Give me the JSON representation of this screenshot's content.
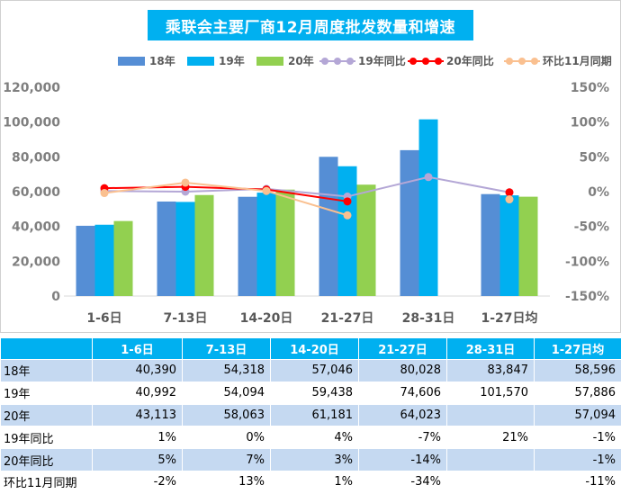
{
  "chart_data": {
    "type": "bar",
    "title": "乘联会主要厂商12月周度批发数量和增速",
    "categories": [
      "1-6日",
      "7-13日",
      "14-20日",
      "21-27日",
      "28-31日",
      "1-27日均"
    ],
    "series": [
      {
        "name": "18年",
        "kind": "bar",
        "axis": "left",
        "color": "#558ed5",
        "values": [
          40390,
          54318,
          57046,
          80028,
          83847,
          58596
        ]
      },
      {
        "name": "19年",
        "kind": "bar",
        "axis": "left",
        "color": "#00b0f0",
        "values": [
          40992,
          54094,
          59438,
          74606,
          101570,
          57886
        ]
      },
      {
        "name": "20年",
        "kind": "bar",
        "axis": "left",
        "color": "#92d050",
        "values": [
          43113,
          58063,
          61181,
          64023,
          null,
          57094
        ]
      },
      {
        "name": "19年同比",
        "kind": "line",
        "axis": "right",
        "color": "#b4a7d6",
        "values": [
          1,
          0,
          4,
          -7,
          21,
          -1
        ]
      },
      {
        "name": "20年同比",
        "kind": "line",
        "axis": "right",
        "color": "#ff0000",
        "values": [
          5,
          7,
          3,
          -14,
          null,
          -1
        ]
      },
      {
        "name": "环比11月同期",
        "kind": "line",
        "axis": "right",
        "color": "#fac090",
        "values": [
          -2,
          13,
          1,
          -34,
          null,
          -11
        ]
      }
    ],
    "y_left": {
      "min": 0,
      "max": 120000,
      "ticks": [
        "0",
        "20,000",
        "40,000",
        "60,000",
        "80,000",
        "100,000",
        "120,000"
      ]
    },
    "y_right": {
      "min": -150,
      "max": 150,
      "ticks": [
        "-150%",
        "-100%",
        "-50%",
        "0%",
        "50%",
        "100%",
        "150%"
      ]
    },
    "legend_position": "top",
    "grid": false
  },
  "table": {
    "headers": [
      "1-6日",
      "7-13日",
      "14-20日",
      "21-27日",
      "28-31日",
      "1-27日均"
    ],
    "rows": [
      {
        "label": "18年",
        "cells": [
          "40,390",
          "54,318",
          "57,046",
          "80,028",
          "83,847",
          "58,596"
        ]
      },
      {
        "label": "19年",
        "cells": [
          "40,992",
          "54,094",
          "59,438",
          "74,606",
          "101,570",
          "57,886"
        ]
      },
      {
        "label": "20年",
        "cells": [
          "43,113",
          "58,063",
          "61,181",
          "64,023",
          "",
          "57,094"
        ]
      },
      {
        "label": "19年同比",
        "cells": [
          "1%",
          "0%",
          "4%",
          "-7%",
          "21%",
          "-1%"
        ]
      },
      {
        "label": "20年同比",
        "cells": [
          "5%",
          "7%",
          "3%",
          "-14%",
          "",
          "-1%"
        ]
      },
      {
        "label": "环比11月同期",
        "cells": [
          "-2%",
          "13%",
          "1%",
          "-34%",
          "",
          "-11%"
        ]
      }
    ]
  }
}
